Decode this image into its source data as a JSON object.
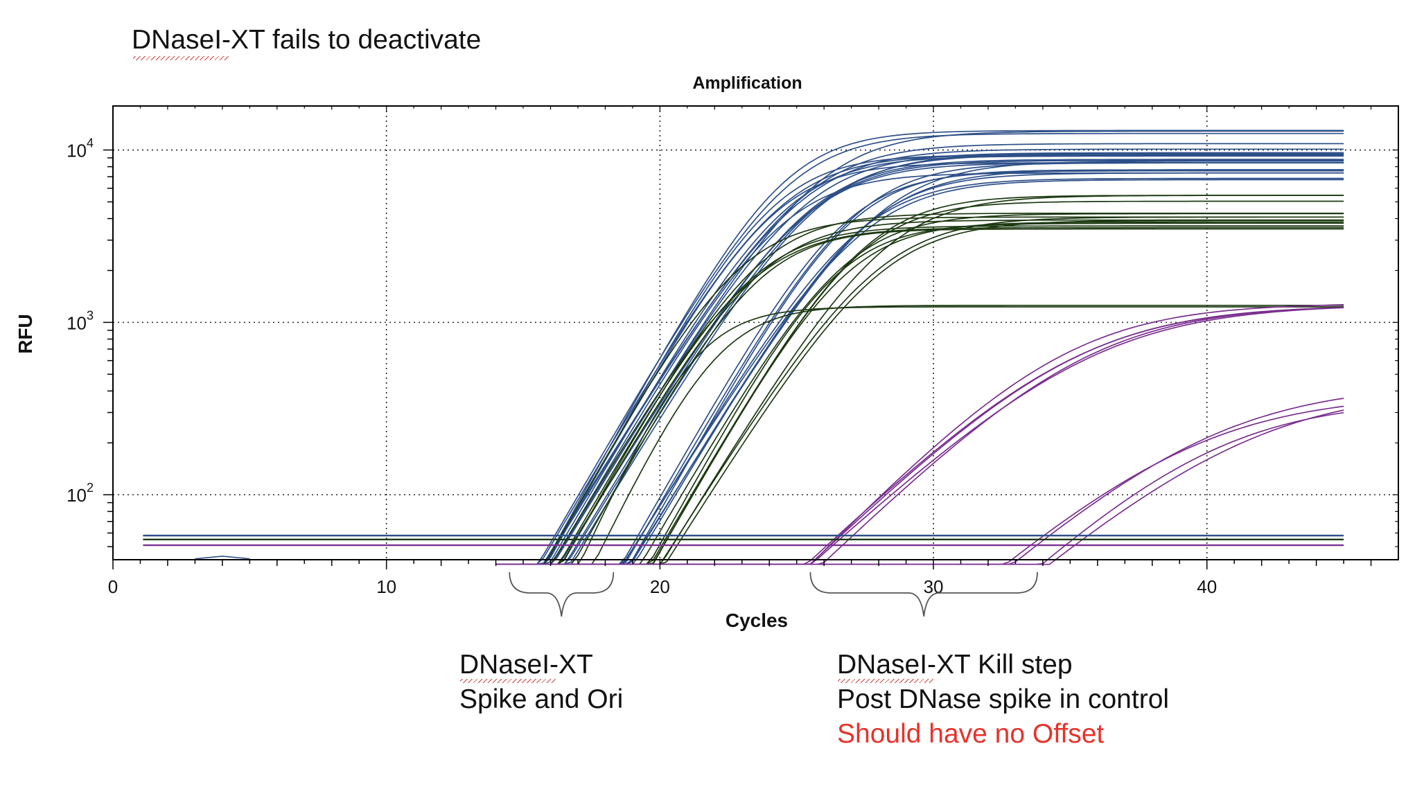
{
  "figure_title": "DNaseI-XT fails to deactivate",
  "annotations": {
    "left": {
      "line1": "DNaseI-XT",
      "line2": "Spike and Ori"
    },
    "right": {
      "line1": "DNaseI-XT Kill step",
      "line2": "Post DNase spike in control",
      "line3": "Should have no Offset"
    }
  },
  "colors": {
    "blue": "#2e5089",
    "green": "#1d3a12",
    "purple": "#7a2f8f",
    "red_text": "#e8322a"
  },
  "chart_data": {
    "type": "line",
    "title": "Amplification",
    "xlabel": "Cycles",
    "ylabel": "RFU",
    "yscale": "log",
    "xlim": [
      0,
      47
    ],
    "ylim": [
      42,
      18000
    ],
    "xticks": [
      0,
      10,
      20,
      30,
      40
    ],
    "ytick_labels": [
      {
        "value": 100,
        "base": "10",
        "exp": "2"
      },
      {
        "value": 1000,
        "base": "10",
        "exp": "3"
      },
      {
        "value": 10000,
        "base": "10",
        "exp": "4"
      }
    ],
    "grid": true,
    "threshold_lines": [
      {
        "name": "blue threshold",
        "color": "blue",
        "value": 58
      },
      {
        "name": "green threshold",
        "color": "green",
        "value": 55
      },
      {
        "name": "purple threshold",
        "color": "purple",
        "value": 51
      }
    ],
    "x_range": [
      14,
      45
    ],
    "series": [
      {
        "name": "Spike early group (blue)",
        "color": "blue",
        "count": 16,
        "ct": [
          15.6,
          17.0
        ],
        "plateau": [
          7000,
          13500
        ]
      },
      {
        "name": "Spike late group (blue)",
        "color": "blue",
        "count": 8,
        "ct": [
          18.5,
          19.5
        ],
        "plateau": [
          6500,
          9500
        ]
      },
      {
        "name": "Ori early group (green)",
        "color": "green",
        "count": 6,
        "ct": [
          15.8,
          17.2
        ],
        "plateau": [
          3200,
          4400
        ]
      },
      {
        "name": "Ori late group (green)",
        "color": "green",
        "count": 8,
        "ct": [
          19.5,
          20.5
        ],
        "plateau": [
          3600,
          5800
        ]
      },
      {
        "name": "Ori low plateau (green)",
        "color": "green",
        "count": 2,
        "ct": [
          17.2,
          17.8
        ],
        "plateau": [
          1230,
          1260
        ]
      },
      {
        "name": "Control early (purple)",
        "color": "purple",
        "count": 5,
        "ct": [
          25.5,
          26.5
        ],
        "plateau": [
          1250,
          1400
        ]
      },
      {
        "name": "Control late (purple)",
        "color": "purple",
        "count": 4,
        "ct": [
          33.0,
          35.0
        ],
        "plateau": [
          300,
          500
        ]
      }
    ],
    "brackets": [
      {
        "name": "DNaseI-XT spike bracket",
        "x_from": 14.5,
        "x_to": 18.3
      },
      {
        "name": "Kill step bracket",
        "x_from": 25.5,
        "x_to": 33.8
      }
    ]
  }
}
